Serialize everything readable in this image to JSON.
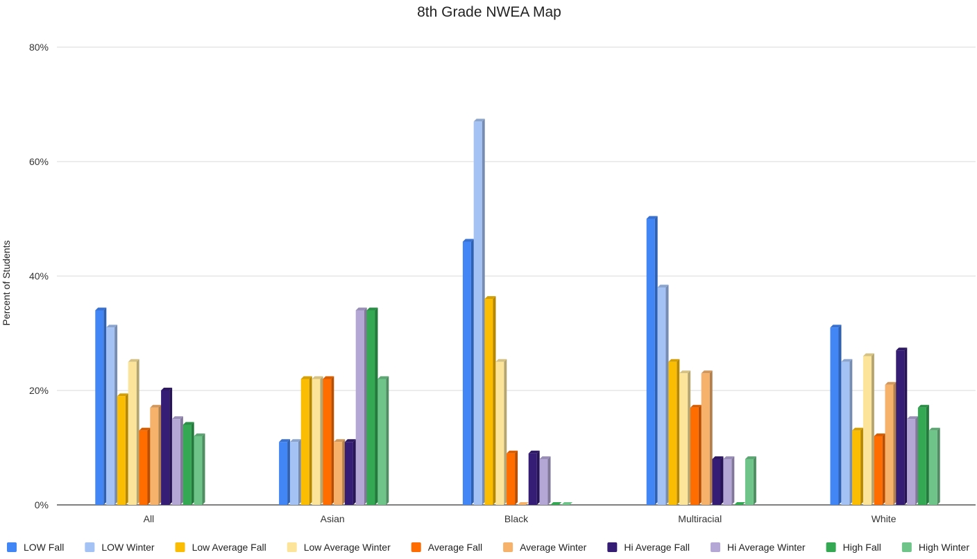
{
  "chart_data": {
    "type": "bar",
    "title": "8th Grade NWEA Map",
    "xlabel": "",
    "ylabel": "Percent of Students",
    "ylim": [
      0,
      80
    ],
    "yticks": [
      "0%",
      "20%",
      "40%",
      "60%",
      "80%"
    ],
    "grid": true,
    "legend_position": "bottom",
    "categories": [
      "All",
      "Asian",
      "Black",
      "Multiracial",
      "White"
    ],
    "series": [
      {
        "name": "LOW Fall",
        "color": "#4285f4",
        "values": [
          34,
          11,
          46,
          50,
          31
        ]
      },
      {
        "name": "LOW Winter",
        "color": "#a4c2f4",
        "values": [
          31,
          11,
          67,
          38,
          25
        ]
      },
      {
        "name": "Low Average Fall",
        "color": "#fbbc04",
        "values": [
          19,
          22,
          36,
          25,
          13
        ]
      },
      {
        "name": "Low Average Winter",
        "color": "#fce59b",
        "values": [
          25,
          22,
          25,
          23,
          26
        ]
      },
      {
        "name": "Average Fall",
        "color": "#ff6d01",
        "values": [
          13,
          22,
          9,
          17,
          12
        ]
      },
      {
        "name": "Average Winter",
        "color": "#f6b26b",
        "values": [
          17,
          11,
          0,
          23,
          21
        ]
      },
      {
        "name": "Hi Average Fall",
        "color": "#351c75",
        "values": [
          20,
          11,
          9,
          8,
          27
        ]
      },
      {
        "name": "Hi Average Winter",
        "color": "#b4a7d6",
        "values": [
          15,
          34,
          8,
          8,
          15
        ]
      },
      {
        "name": "High Fall",
        "color": "#34a853",
        "values": [
          14,
          34,
          0,
          0,
          17
        ]
      },
      {
        "name": "High Winter",
        "color": "#6fc48a",
        "values": [
          12,
          22,
          0,
          8,
          13
        ]
      }
    ]
  }
}
